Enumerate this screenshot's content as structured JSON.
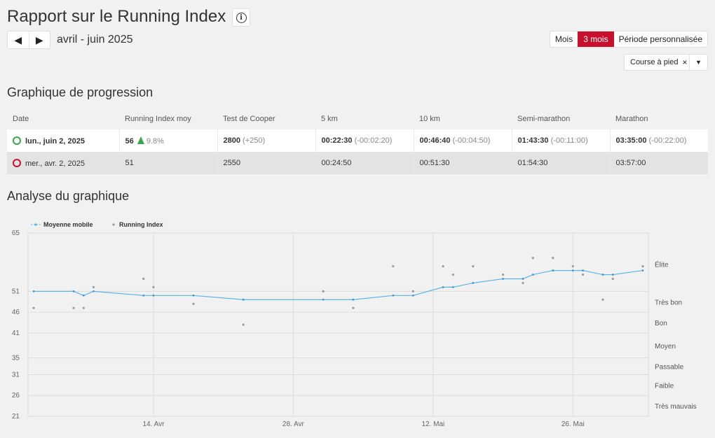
{
  "page": {
    "title": "Rapport sur le Running Index",
    "info_icon": "info-icon",
    "nav": {
      "prev_icon": "◀",
      "next_icon": "▶",
      "period": "avril - juin 2025"
    },
    "ranges": [
      "Mois",
      "3 mois",
      "Période personnalisée"
    ],
    "active_range": "3 mois",
    "sport_filter": {
      "label": "Course à pied",
      "clear": "×",
      "dropdown": "▼"
    },
    "progress_title": "Graphique de progression",
    "analysis_title": "Analyse du graphique",
    "accent_color": "#c8102e"
  },
  "table": {
    "headers": [
      "Date",
      "Running Index moy",
      "Test de Cooper",
      "5 km",
      "10 km",
      "Semi-marathon",
      "Marathon"
    ],
    "rows": [
      {
        "ring_color": "#3aa54a",
        "date": "lun., juin 2, 2025",
        "ri": "56",
        "ri_delta": "9.8%",
        "cooper": "2800",
        "cooper_delta": "(+250)",
        "k5": "00:22:30",
        "k5_delta": "(-00:02:20)",
        "k10": "00:46:40",
        "k10_delta": "(-00:04:50)",
        "half": "01:43:30",
        "half_delta": "(-00:11:00)",
        "full": "03:35:00",
        "full_delta": "(-00:22:00)"
      },
      {
        "ring_color": "#c8102e",
        "date": "mer., avr. 2, 2025",
        "ri": "51",
        "cooper": "2550",
        "k5": "00:24:50",
        "k10": "00:51:30",
        "half": "01:54:30",
        "full": "03:57:00"
      }
    ]
  },
  "chart_data": {
    "type": "scatter",
    "legend": [
      "Moyenne mobile",
      "Running Index"
    ],
    "legend_position": "top-left",
    "grid": true,
    "x_start_date": "2025-04-02",
    "xlim": [
      "2025-04-02",
      "2025-06-02"
    ],
    "x_ticks": [
      {
        "date": "2025-04-14",
        "label": "14. Avr"
      },
      {
        "date": "2025-04-28",
        "label": "28. Avr"
      },
      {
        "date": "2025-05-12",
        "label": "12. Mai"
      },
      {
        "date": "2025-05-26",
        "label": "26. Mai"
      }
    ],
    "ylim": [
      21,
      65
    ],
    "y_ticks": [
      21,
      26,
      31,
      35,
      41,
      46,
      51,
      65
    ],
    "zones": [
      {
        "label": "Élite",
        "y": 57.5
      },
      {
        "label": "Très bon",
        "y": 48.5
      },
      {
        "label": "Bon",
        "y": 43.5
      },
      {
        "label": "Moyen",
        "y": 38
      },
      {
        "label": "Passable",
        "y": 33
      },
      {
        "label": "Faible",
        "y": 28.5
      },
      {
        "label": "Très mauvais",
        "y": 23.5
      }
    ],
    "series": [
      {
        "name": "Running Index",
        "color": "#9a9a9a",
        "x": [
          "2025-04-02",
          "2025-04-06",
          "2025-04-07",
          "2025-04-08",
          "2025-04-13",
          "2025-04-14",
          "2025-04-18",
          "2025-04-23",
          "2025-05-01",
          "2025-05-04",
          "2025-05-08",
          "2025-05-10",
          "2025-05-13",
          "2025-05-14",
          "2025-05-16",
          "2025-05-19",
          "2025-05-21",
          "2025-05-22",
          "2025-05-24",
          "2025-05-26",
          "2025-05-27",
          "2025-05-29",
          "2025-05-30",
          "2025-06-02"
        ],
        "y": [
          47,
          47,
          47,
          52,
          54,
          52,
          48,
          43,
          51,
          47,
          57,
          51,
          57,
          55,
          57,
          55,
          53,
          59,
          59,
          57,
          55,
          49,
          54,
          57
        ]
      },
      {
        "name": "Moyenne mobile",
        "color": "#5ab4e6",
        "x": [
          "2025-04-02",
          "2025-04-06",
          "2025-04-07",
          "2025-04-08",
          "2025-04-13",
          "2025-04-14",
          "2025-04-18",
          "2025-04-23",
          "2025-05-01",
          "2025-05-04",
          "2025-05-08",
          "2025-05-10",
          "2025-05-13",
          "2025-05-14",
          "2025-05-16",
          "2025-05-19",
          "2025-05-21",
          "2025-05-22",
          "2025-05-24",
          "2025-05-26",
          "2025-05-27",
          "2025-05-29",
          "2025-05-30",
          "2025-06-02"
        ],
        "y": [
          51,
          51,
          50,
          51,
          50,
          50,
          50,
          49,
          49,
          49,
          50,
          50,
          52,
          52,
          53,
          54,
          54,
          55,
          56,
          56,
          56,
          55,
          55,
          56
        ]
      }
    ]
  }
}
